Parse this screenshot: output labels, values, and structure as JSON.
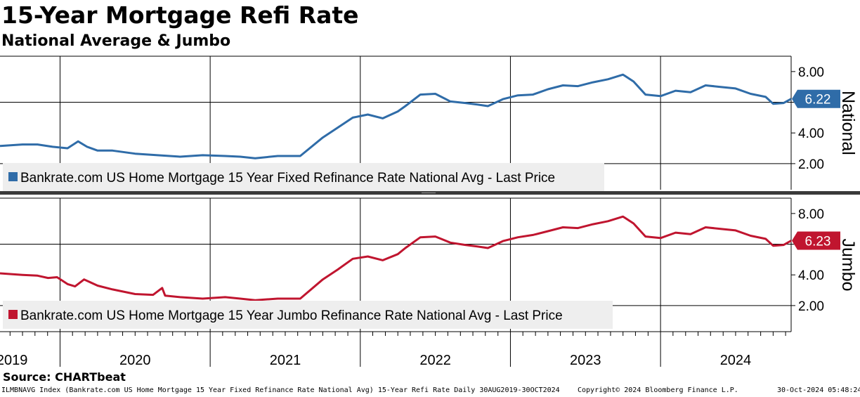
{
  "title": "15-Year Mortgage Refi Rate",
  "subtitle": "National Average & Jumbo",
  "source": "Source: CHARTbeat",
  "footer": {
    "left": "ILMBNAVG Index (Bankrate.com US Home Mortgage 15 Year Fixed Refinance Rate National Avg) 15-Year Refi Rate  Daily 30AUG2019-30OCT2024",
    "middle": "Copyright© 2024 Bloomberg Finance L.P.",
    "right": "30-Oct-2024 05:48:24"
  },
  "colors": {
    "national": "#2f6ca8",
    "jumbo": "#c0152f",
    "divider": "#3a3a3a",
    "grid": "#000000"
  },
  "chart_data": [
    {
      "type": "line",
      "panel": "top",
      "axis_title": "National",
      "legend": "Bankrate.com US Home Mortgage 15 Year Fixed Refinance Rate National Avg - Last Price",
      "last_value_label": "6.22",
      "last_value": 6.22,
      "ylim": [
        0.3,
        9.0
      ],
      "yticks": [
        2.0,
        4.0,
        6.0,
        8.0
      ],
      "ytick_labels": [
        "2.00",
        "4.00",
        "6.00",
        "8.00"
      ],
      "gridlines_y": [
        2.0,
        6.0
      ],
      "xlim": [
        2019.6,
        2024.87
      ],
      "x": [
        2019.6,
        2019.75,
        2019.85,
        2019.95,
        2020.05,
        2020.12,
        2020.18,
        2020.25,
        2020.35,
        2020.5,
        2020.65,
        2020.8,
        2020.95,
        2021.1,
        2021.2,
        2021.3,
        2021.45,
        2021.6,
        2021.75,
        2021.85,
        2021.95,
        2022.05,
        2022.15,
        2022.25,
        2022.3,
        2022.4,
        2022.5,
        2022.6,
        2022.7,
        2022.78,
        2022.85,
        2022.95,
        2023.05,
        2023.15,
        2023.25,
        2023.35,
        2023.45,
        2023.55,
        2023.65,
        2023.75,
        2023.82,
        2023.9,
        2024.0,
        2024.1,
        2024.2,
        2024.3,
        2024.4,
        2024.5,
        2024.6,
        2024.7,
        2024.75,
        2024.82,
        2024.87
      ],
      "values": [
        3.15,
        3.25,
        3.25,
        3.1,
        3.0,
        3.45,
        3.1,
        2.85,
        2.85,
        2.65,
        2.55,
        2.45,
        2.55,
        2.5,
        2.45,
        2.35,
        2.5,
        2.5,
        3.7,
        4.35,
        5.0,
        5.2,
        4.95,
        5.4,
        5.75,
        6.5,
        6.55,
        6.05,
        5.95,
        5.85,
        5.75,
        6.2,
        6.45,
        6.5,
        6.85,
        7.1,
        7.05,
        7.3,
        7.5,
        7.8,
        7.35,
        6.5,
        6.4,
        6.75,
        6.65,
        7.1,
        7.0,
        6.9,
        6.55,
        6.35,
        5.9,
        5.95,
        6.22
      ]
    },
    {
      "type": "line",
      "panel": "bottom",
      "axis_title": "Jumbo",
      "legend": "Bankrate.com US Home Mortgage 15 Year Jumbo Refinance Rate National Avg - Last Price",
      "last_value_label": "6.23",
      "last_value": 6.23,
      "ylim": [
        0.3,
        9.0
      ],
      "yticks": [
        2.0,
        4.0,
        6.0,
        8.0
      ],
      "ytick_labels": [
        "2.00",
        "4.00",
        "6.00",
        "8.00"
      ],
      "gridlines_y": [
        2.0,
        6.0
      ],
      "xlim": [
        2019.6,
        2024.87
      ],
      "x": [
        2019.6,
        2019.75,
        2019.85,
        2019.92,
        2019.98,
        2020.05,
        2020.1,
        2020.16,
        2020.25,
        2020.35,
        2020.5,
        2020.62,
        2020.68,
        2020.7,
        2020.8,
        2020.95,
        2021.1,
        2021.2,
        2021.3,
        2021.45,
        2021.6,
        2021.75,
        2021.85,
        2021.95,
        2022.05,
        2022.15,
        2022.25,
        2022.3,
        2022.4,
        2022.5,
        2022.6,
        2022.7,
        2022.78,
        2022.85,
        2022.95,
        2023.05,
        2023.15,
        2023.25,
        2023.35,
        2023.45,
        2023.55,
        2023.65,
        2023.75,
        2023.82,
        2023.9,
        2024.0,
        2024.1,
        2024.2,
        2024.3,
        2024.4,
        2024.5,
        2024.6,
        2024.7,
        2024.75,
        2024.82,
        2024.87
      ],
      "values": [
        4.1,
        4.0,
        3.95,
        3.8,
        3.85,
        3.4,
        3.25,
        3.7,
        3.3,
        3.05,
        2.75,
        2.7,
        3.15,
        2.65,
        2.55,
        2.45,
        2.55,
        2.45,
        2.35,
        2.45,
        2.45,
        3.7,
        4.35,
        5.05,
        5.2,
        4.95,
        5.35,
        5.75,
        6.45,
        6.5,
        6.1,
        5.95,
        5.85,
        5.75,
        6.2,
        6.45,
        6.6,
        6.85,
        7.1,
        7.05,
        7.3,
        7.5,
        7.8,
        7.35,
        6.5,
        6.4,
        6.75,
        6.65,
        7.1,
        7.0,
        6.9,
        6.55,
        6.35,
        5.9,
        5.95,
        6.23
      ]
    }
  ],
  "x_axis": {
    "year_labels": [
      "2019",
      "2020",
      "2021",
      "2022",
      "2023",
      "2024"
    ],
    "year_centers": [
      2019.68,
      2020.5,
      2021.5,
      2022.5,
      2023.5,
      2024.5
    ],
    "year_boundaries": [
      2020.0,
      2021.0,
      2022.0,
      2023.0,
      2024.0
    ],
    "month_ticks": [
      2019.667,
      2019.75,
      2019.833,
      2019.917,
      2020.083,
      2020.167,
      2020.25,
      2020.333,
      2020.417,
      2020.5,
      2020.583,
      2020.667,
      2020.75,
      2020.833,
      2020.917,
      2021.083,
      2021.167,
      2021.25,
      2021.333,
      2021.417,
      2021.5,
      2021.583,
      2021.667,
      2021.75,
      2021.833,
      2021.917,
      2022.083,
      2022.167,
      2022.25,
      2022.333,
      2022.417,
      2022.5,
      2022.583,
      2022.667,
      2022.75,
      2022.833,
      2022.917,
      2023.083,
      2023.167,
      2023.25,
      2023.333,
      2023.417,
      2023.5,
      2023.583,
      2023.667,
      2023.75,
      2023.833,
      2023.917,
      2024.083,
      2024.167,
      2024.25,
      2024.333,
      2024.417,
      2024.5,
      2024.583,
      2024.667,
      2024.75,
      2024.833
    ]
  }
}
